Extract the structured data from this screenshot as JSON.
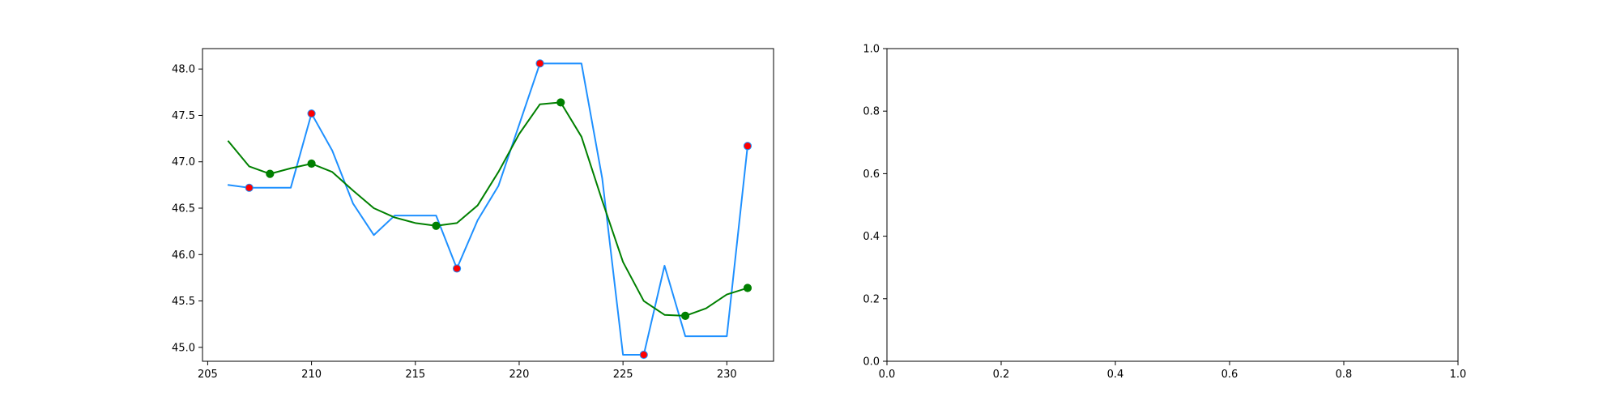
{
  "chart_data": [
    {
      "type": "line",
      "x": [
        206,
        207,
        208,
        209,
        210,
        211,
        212,
        213,
        214,
        215,
        216,
        217,
        218,
        219,
        220,
        221,
        222,
        223,
        224,
        225,
        226,
        227,
        228,
        229,
        230,
        231
      ],
      "xlim": [
        204.75,
        232.25
      ],
      "ylim": [
        44.85,
        48.22
      ],
      "xticks": [
        205,
        210,
        215,
        220,
        225,
        230
      ],
      "yticks": [
        45.0,
        45.5,
        46.0,
        46.5,
        47.0,
        47.5,
        48.0
      ],
      "xtick_labels": [
        "205",
        "210",
        "215",
        "220",
        "225",
        "230"
      ],
      "ytick_labels": [
        "45.0",
        "45.5",
        "46.0",
        "46.5",
        "47.0",
        "47.5",
        "48.0"
      ],
      "grid": false,
      "series": [
        {
          "color": "#1e90ff",
          "kind": "line",
          "values": [
            46.75,
            46.72,
            46.72,
            46.72,
            47.52,
            47.12,
            46.55,
            46.21,
            46.42,
            46.42,
            46.42,
            45.85,
            46.37,
            46.74,
            47.4,
            48.06,
            48.06,
            48.06,
            46.82,
            44.92,
            44.92,
            45.88,
            45.12,
            45.12,
            45.12,
            47.17
          ]
        },
        {
          "color": "#008000",
          "kind": "line",
          "values": [
            47.22,
            46.95,
            46.87,
            46.93,
            46.98,
            46.89,
            46.69,
            46.5,
            46.4,
            46.34,
            46.31,
            46.34,
            46.53,
            46.89,
            47.3,
            47.62,
            47.64,
            47.27,
            46.58,
            45.92,
            45.5,
            45.35,
            45.34,
            45.42,
            45.57,
            45.64
          ]
        },
        {
          "color": "#ff0000",
          "edgecolor": "#1e90ff",
          "kind": "scatter",
          "points": [
            [
              207,
              46.72
            ],
            [
              210,
              47.52
            ],
            [
              217,
              45.85
            ],
            [
              221,
              48.06
            ],
            [
              226,
              44.92
            ],
            [
              231,
              47.17
            ]
          ]
        },
        {
          "color": "#008000",
          "kind": "scatter",
          "points": [
            [
              208,
              46.87
            ],
            [
              210,
              46.98
            ],
            [
              216,
              46.31
            ],
            [
              222,
              47.64
            ],
            [
              228,
              45.34
            ],
            [
              231,
              45.64
            ]
          ]
        }
      ]
    },
    {
      "type": "line",
      "xlim": [
        0.0,
        1.0
      ],
      "ylim": [
        0.0,
        1.0
      ],
      "xticks": [
        0.0,
        0.2,
        0.4,
        0.6,
        0.8,
        1.0
      ],
      "yticks": [
        0.0,
        0.2,
        0.4,
        0.6,
        0.8,
        1.0
      ],
      "xtick_labels": [
        "0.0",
        "0.2",
        "0.4",
        "0.6",
        "0.8",
        "1.0"
      ],
      "ytick_labels": [
        "0.0",
        "0.2",
        "0.4",
        "0.6",
        "0.8",
        "1.0"
      ],
      "grid": false,
      "series": []
    }
  ]
}
